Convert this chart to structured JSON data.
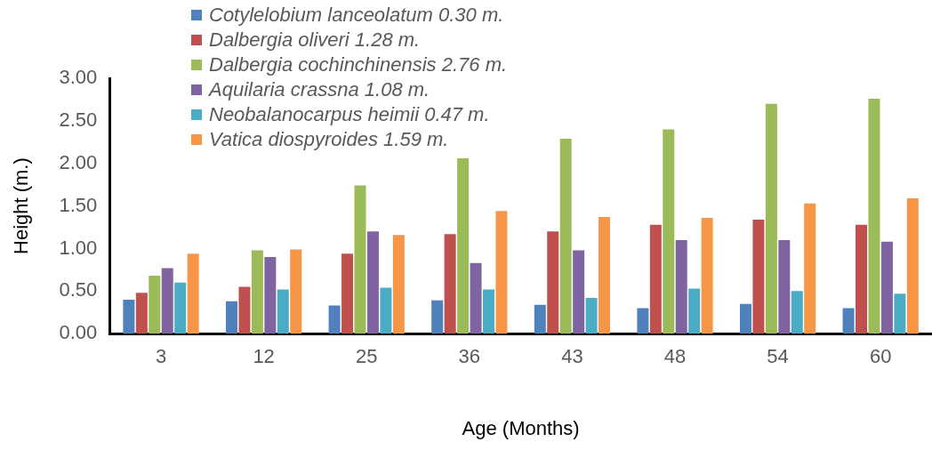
{
  "chart_data": {
    "type": "bar",
    "xlabel": "Age (Months)",
    "ylabel": "Height (m.)",
    "categories": [
      "3",
      "12",
      "25",
      "36",
      "43",
      "48",
      "54",
      "60"
    ],
    "series": [
      {
        "name": "Cotylelobium lanceolatum 0.30 m.",
        "color": "#4f81bd",
        "values": [
          0.4,
          0.38,
          0.33,
          0.39,
          0.34,
          0.3,
          0.35,
          0.3
        ]
      },
      {
        "name": "Dalbergia oliveri 1.28 m.",
        "color": "#c0504d",
        "values": [
          0.48,
          0.55,
          0.94,
          1.17,
          1.2,
          1.28,
          1.34,
          1.28
        ]
      },
      {
        "name": "Dalbergia cochinchinensis 2.76 m.",
        "color": "#9bbb59",
        "values": [
          0.68,
          0.98,
          1.74,
          2.06,
          2.29,
          2.4,
          2.7,
          2.76
        ]
      },
      {
        "name": "Aquilaria crassna 1.08 m.",
        "color": "#8064a2",
        "values": [
          0.77,
          0.9,
          1.2,
          0.83,
          0.98,
          1.1,
          1.1,
          1.08
        ]
      },
      {
        "name": "Neobalanocarpus heimii 0.47 m.",
        "color": "#4bacc6",
        "values": [
          0.6,
          0.52,
          0.54,
          0.52,
          0.42,
          0.53,
          0.5,
          0.47
        ]
      },
      {
        "name": "Vatica diospyroides 1.59 m.",
        "color": "#f79646",
        "values": [
          0.94,
          0.99,
          1.16,
          1.44,
          1.37,
          1.36,
          1.53,
          1.59
        ]
      }
    ],
    "ylim": [
      0,
      3
    ],
    "yticks": [
      {
        "value": 0,
        "label": "0.00"
      },
      {
        "value": 0.5,
        "label": "0.50"
      },
      {
        "value": 1,
        "label": "1.00"
      },
      {
        "value": 1.5,
        "label": "1.50"
      },
      {
        "value": 2,
        "label": "2.00"
      },
      {
        "value": 2.5,
        "label": "2.50"
      },
      {
        "value": 3,
        "label": "3.00"
      }
    ],
    "grid": false,
    "legend": "top"
  }
}
